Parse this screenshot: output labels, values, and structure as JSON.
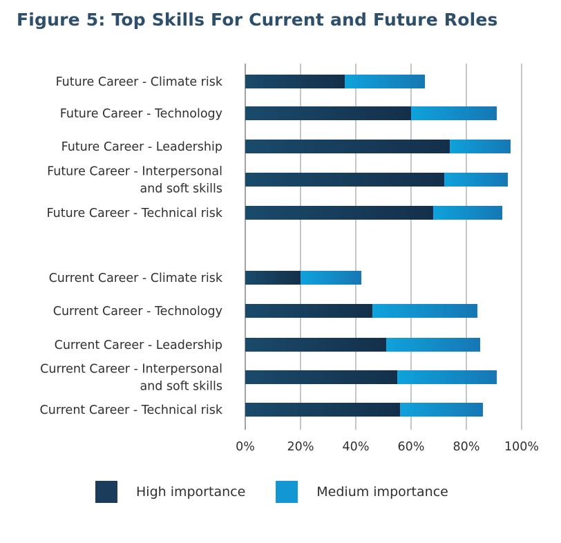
{
  "title": "Figure 5: Top Skills For Current and Future Roles",
  "colors": {
    "high": "#1b3d5b",
    "medium": "#1297d2"
  },
  "legend": {
    "high_label": "High importance",
    "medium_label": "Medium importance"
  },
  "chart_data": {
    "type": "bar",
    "orientation": "horizontal",
    "stacked": true,
    "title": "Figure 5: Top Skills For Current and Future Roles",
    "x_ticks": [
      "0%",
      "20%",
      "40%",
      "60%",
      "80%",
      "100%"
    ],
    "xlim": [
      0,
      100
    ],
    "grid": true,
    "legend_position": "bottom",
    "categories": [
      {
        "lines": [
          "Future Career - Climate risk"
        ],
        "high": 36,
        "medium": 29
      },
      {
        "lines": [
          "Future Career - Technology"
        ],
        "high": 60,
        "medium": 31
      },
      {
        "lines": [
          "Future Career - Leadership"
        ],
        "high": 74,
        "medium": 22
      },
      {
        "lines": [
          "Future Career - Interpersonal",
          "and soft skills"
        ],
        "high": 72,
        "medium": 23
      },
      {
        "lines": [
          "Future Career - Technical risk"
        ],
        "high": 68,
        "medium": 25
      },
      {
        "lines": [
          "Current Career - Climate risk"
        ],
        "high": 20,
        "medium": 22
      },
      {
        "lines": [
          "Current Career - Technology"
        ],
        "high": 46,
        "medium": 38
      },
      {
        "lines": [
          "Current Career - Leadership"
        ],
        "high": 51,
        "medium": 34
      },
      {
        "lines": [
          "Current Career - Interpersonal",
          "and soft skills"
        ],
        "high": 55,
        "medium": 36
      },
      {
        "lines": [
          "Current Career - Technical risk"
        ],
        "high": 56,
        "medium": 30
      }
    ],
    "series": [
      {
        "name": "High importance",
        "key": "high"
      },
      {
        "name": "Medium importance",
        "key": "medium"
      }
    ]
  }
}
